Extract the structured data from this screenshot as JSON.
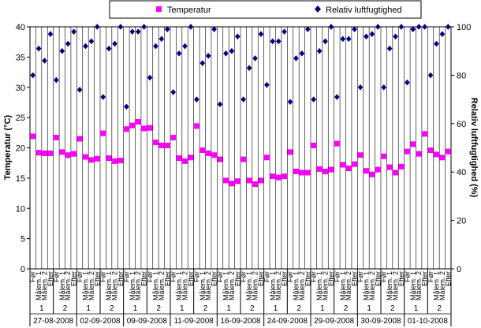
{
  "chart_data": {
    "type": "scatter",
    "legend": {
      "placement": "top",
      "entries": [
        {
          "name": "Temperatur",
          "marker": "square",
          "color": "#ff00ff"
        },
        {
          "name": "Relativ luftfugtighed",
          "marker": "diamond",
          "color": "#000080"
        }
      ]
    },
    "y_left": {
      "label": "Temperatur (°C)",
      "lim": [
        0,
        40
      ],
      "ticks": [
        0,
        5,
        10,
        15,
        20,
        25,
        30,
        35,
        40
      ]
    },
    "y_right": {
      "label": "Relativ luftfugtighed (%)",
      "lim": [
        0,
        100
      ],
      "ticks": [
        0,
        20,
        40,
        60,
        80,
        100
      ]
    },
    "grid": "vertical category gridlines",
    "dates": [
      {
        "label": "27-08-2008",
        "experiments": [
          {
            "label": "1",
            "slots": [
              "Før",
              "Målem. 1",
              "Målem. 2",
              "Efter"
            ]
          },
          {
            "label": "2",
            "slots": [
              "Før",
              "Målem. 1",
              "Målem. 2",
              "Efter"
            ]
          }
        ]
      },
      {
        "label": "02-09-2008",
        "experiments": [
          {
            "label": "1",
            "slots": [
              "Før",
              "Målem. 1",
              "Målem. 2",
              "Efter"
            ]
          },
          {
            "label": "2",
            "slots": [
              "Før",
              "Målem. 1",
              "Målem. 2",
              "Efter"
            ]
          }
        ]
      },
      {
        "label": "09-09-2008",
        "experiments": [
          {
            "label": "1",
            "slots": [
              "Før",
              "Målem. 1",
              "Målem. 2",
              "Efter"
            ]
          },
          {
            "label": "2",
            "slots": [
              "Før",
              "Målem. 1",
              "Målem. 2",
              "Efter"
            ]
          }
        ]
      },
      {
        "label": "11-09-2008",
        "experiments": [
          {
            "label": "1",
            "slots": [
              "Før",
              "Målem. 1",
              "Målem. 2",
              "Efter"
            ]
          },
          {
            "label": "2",
            "slots": [
              "Før",
              "Målem. 1",
              "Målem. 2",
              "Efter"
            ]
          }
        ]
      },
      {
        "label": "16-09-2008",
        "experiments": [
          {
            "label": "1",
            "slots": [
              "Før",
              "Målem. 1",
              "Målem. 2",
              "Efter"
            ]
          },
          {
            "label": "2",
            "slots": [
              "Før",
              "Målem. 1",
              "Målem. 2",
              "Efter"
            ]
          }
        ]
      },
      {
        "label": "24-09-2008",
        "experiments": [
          {
            "label": "1",
            "slots": [
              "Før",
              "Målem. 1",
              "Målem. 2",
              "Efter"
            ]
          },
          {
            "label": "2",
            "slots": [
              "Før",
              "Målem. 1",
              "Målem. 2",
              "Efter"
            ]
          }
        ]
      },
      {
        "label": "29-09-2008",
        "experiments": [
          {
            "label": "1",
            "slots": [
              "Før",
              "Målem. 1",
              "Målem. 2",
              "Efter"
            ]
          },
          {
            "label": "2",
            "slots": [
              "Før",
              "Målem. 1",
              "Målem. 2",
              "Efter"
            ]
          }
        ]
      },
      {
        "label": "30-09-2008",
        "experiments": [
          {
            "label": "1",
            "slots": [
              "Før",
              "Målem. 1",
              "Målem. 2",
              "Efter"
            ]
          },
          {
            "label": "2",
            "slots": [
              "Før",
              "Målem. 1",
              "Målem. 2",
              "Efter"
            ]
          }
        ]
      },
      {
        "label": "01-10-2008",
        "experiments": [
          {
            "label": "1",
            "slots": [
              "Før",
              "Målem. 1",
              "Målem. 2",
              "Efter"
            ]
          },
          {
            "label": "2",
            "slots": [
              "Før",
              "Målem. 1",
              "Målem. 2",
              "Efter"
            ]
          }
        ]
      }
    ],
    "series": [
      {
        "name": "Temperatur",
        "axis": "left",
        "values": [
          21.9,
          19.2,
          19.1,
          19.1,
          21.7,
          19.3,
          18.8,
          19.0,
          21.5,
          18.5,
          18.0,
          18.2,
          22.4,
          18.3,
          17.8,
          17.9,
          23.1,
          23.7,
          24.3,
          23.2,
          23.3,
          20.9,
          20.4,
          20.4,
          21.7,
          18.3,
          17.8,
          18.4,
          23.6,
          19.6,
          19.1,
          18.8,
          18.1,
          14.6,
          14.1,
          14.5,
          18.1,
          14.6,
          14.0,
          14.6,
          18.4,
          15.3,
          15.1,
          15.3,
          19.3,
          16.1,
          15.9,
          15.9,
          20.4,
          16.5,
          16.1,
          16.4,
          20.7,
          17.2,
          16.6,
          17.3,
          18.8,
          16.2,
          15.6,
          16.4,
          18.6,
          16.8,
          15.9,
          16.9,
          19.4,
          20.6,
          19.0,
          22.3,
          19.6,
          18.9,
          18.4,
          19.4
        ]
      },
      {
        "name": "Relativ luftfugtighed",
        "axis": "right",
        "values": [
          80,
          91,
          86,
          97,
          78,
          90,
          93,
          98,
          74,
          92,
          94,
          100,
          71,
          91,
          93,
          100,
          67,
          98,
          98,
          100,
          79,
          92,
          95,
          99,
          73,
          89,
          92,
          100,
          70,
          85,
          88,
          99,
          68,
          89,
          90,
          96,
          70,
          83,
          87,
          97,
          76,
          94,
          94,
          98,
          69,
          87,
          89,
          99,
          70,
          90,
          94,
          100,
          71,
          95,
          95,
          99,
          75,
          96,
          97,
          100,
          75,
          91,
          96,
          100,
          77,
          99,
          100,
          100,
          80,
          93,
          97,
          100
        ]
      }
    ]
  }
}
